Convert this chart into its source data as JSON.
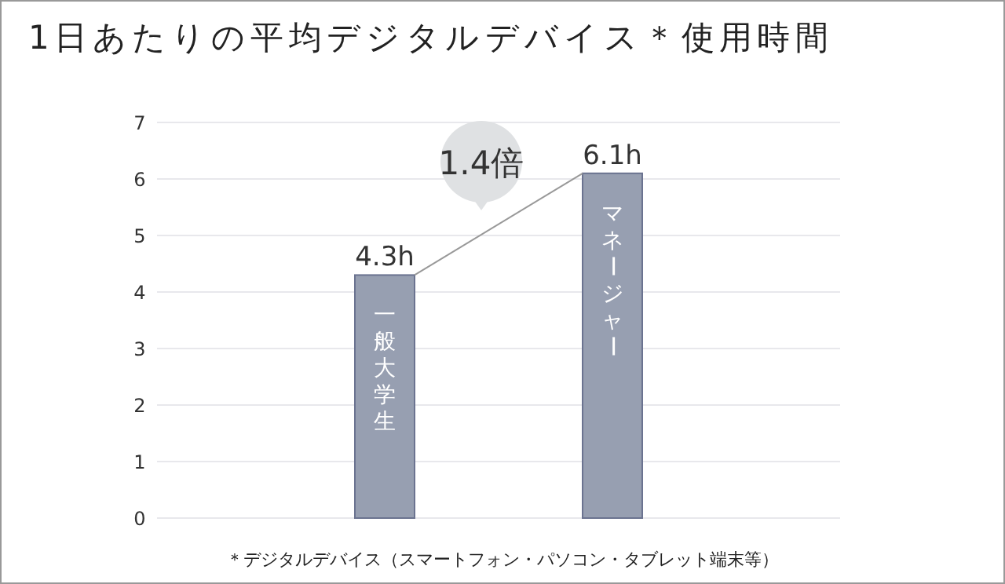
{
  "chart_data": {
    "type": "bar",
    "title": "1日あたりの平均デジタルデバイス＊使用時間",
    "categories": [
      "一般大学生",
      "マネージャー"
    ],
    "values": [
      4.3,
      6.1
    ],
    "value_labels": [
      "4.3h",
      "6.1h"
    ],
    "color": "#979fb1",
    "ylim": [
      0,
      7
    ],
    "yticks": [
      0,
      1,
      2,
      3,
      4,
      5,
      6,
      7
    ],
    "grid": "y",
    "annotations": [
      "1.4倍",
      "＊デジタルデバイス（スマートフォン・パソコン・タブレット端末等）"
    ]
  }
}
